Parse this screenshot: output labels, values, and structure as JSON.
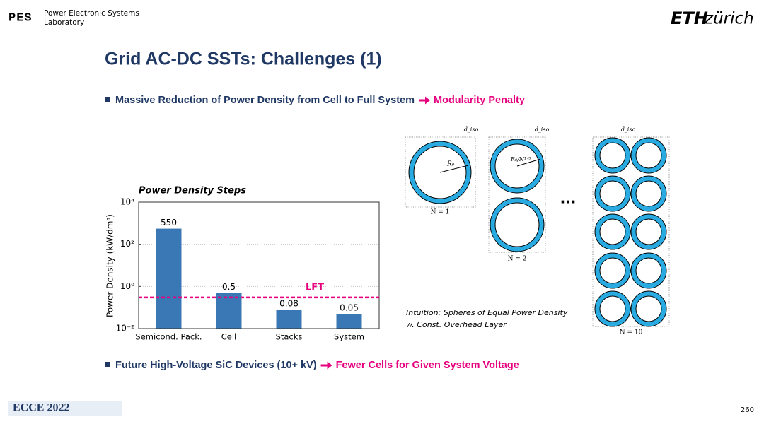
{
  "header": {
    "lab_name": [
      "Power Electronic Systems",
      "Laboratory"
    ],
    "lab_logo": "PES",
    "university_logo": [
      "ETH",
      "zürich"
    ]
  },
  "title": "Grid AC-DC SSTs: Challenges (1)",
  "bullets": [
    {
      "text": "Massive Reduction of Power Density from Cell to Full System",
      "highlight": "Modularity Penalty"
    },
    {
      "text": "Future High-Voltage SiC Devices (10+ kV)",
      "highlight": "Fewer Cells for Given System Voltage"
    }
  ],
  "chart_data": {
    "type": "bar",
    "title": "Power Density Steps",
    "ylabel": "Power Density (kW/dm³)",
    "categories": [
      "Semicond. Pack.",
      "Cell",
      "Stacks",
      "System"
    ],
    "values": [
      550,
      0.5,
      0.08,
      0.05
    ],
    "color": "#3a78b5",
    "log_scale": true,
    "ylim": [
      0.01,
      10000
    ],
    "yticks": [
      {
        "value": 0.01,
        "label": "10⁻²"
      },
      {
        "value": 1,
        "label": "10⁰"
      },
      {
        "value": 100,
        "label": "10²"
      },
      {
        "value": 10000,
        "label": "10⁴"
      }
    ],
    "grid": true,
    "reference_line": {
      "label": "LFT",
      "value": 0.3,
      "color": "#e6007e"
    }
  },
  "diagram": {
    "iso_label": "d_iso",
    "radius_labels": [
      "R₀",
      "R₀/N¹ᐟ³"
    ],
    "case_labels": [
      "N = 1",
      "N = 2",
      "N = 10"
    ],
    "ellipsis": "...",
    "caption": [
      "Intuition: Spheres of Equal Power Density",
      "w. Const. Overhead Layer"
    ]
  },
  "footer": {
    "conference": "ECCE 2022",
    "page_number": "260"
  }
}
